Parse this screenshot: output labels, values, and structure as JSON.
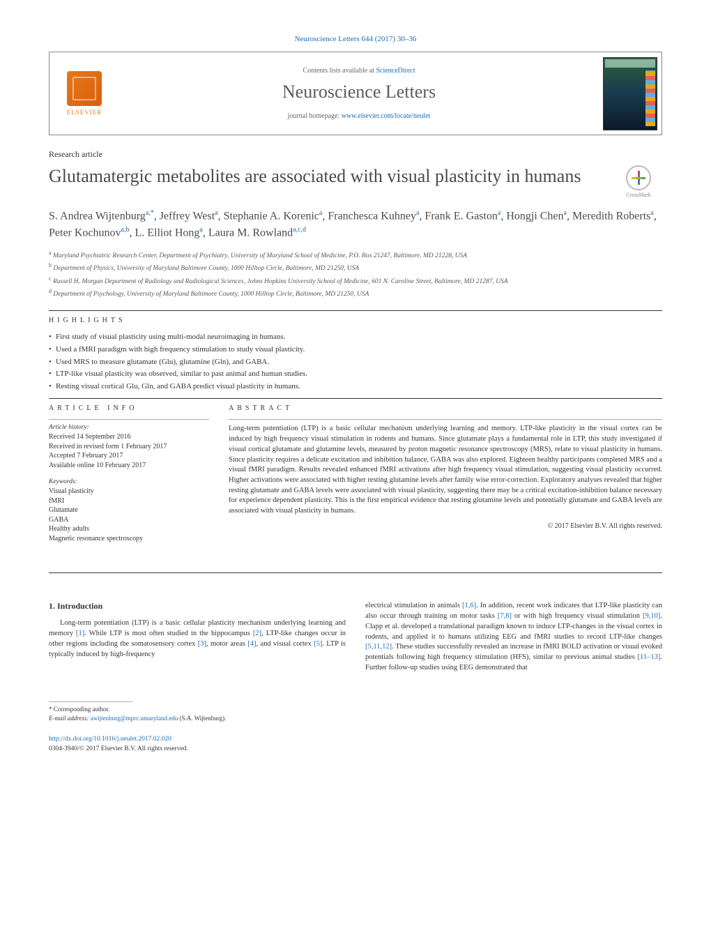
{
  "colors": {
    "link": "#1a6bb8",
    "text": "#333333",
    "elsevier_orange": "#e67817",
    "title_gray": "#4a4a4a"
  },
  "typography": {
    "body_font": "Georgia, serif",
    "title_size_pt": 26,
    "author_size_pt": 16,
    "body_size_pt": 10.5,
    "small_size_pt": 9.5
  },
  "header": {
    "citation": "Neuroscience Letters 644 (2017) 30–36",
    "contents_prefix": "Contents lists available at ",
    "contents_link": "ScienceDirect",
    "journal_title": "Neuroscience Letters",
    "homepage_prefix": "journal homepage: ",
    "homepage_url": "www.elsevier.com/locate/neulet",
    "publisher": "ELSEVIER"
  },
  "crossmark": "CrossMark",
  "article": {
    "type": "Research article",
    "title": "Glutamatergic metabolites are associated with visual plasticity in humans",
    "authors_html": "S. Andrea Wijtenburg<sup>a,*</sup>, Jeffrey West<sup>a</sup>, Stephanie A. Korenic<sup>a</sup>, Franchesca Kuhney<sup>a</sup>, Frank E. Gaston<sup>a</sup>, Hongji Chen<sup>a</sup>, Meredith Roberts<sup>a</sup>, Peter Kochunov<sup>a,b</sup>, L. Elliot Hong<sup>a</sup>, Laura M. Rowland<sup>a,c,d</sup>",
    "affiliations": [
      "<sup>a</sup> Maryland Psychiatric Research Center, Department of Psychiatry, University of Maryland School of Medicine, P.O. Box 21247, Baltimore, MD 21228, USA",
      "<sup>b</sup> Department of Physics, University of Maryland Baltimore County, 1000 Hilltop Circle, Baltimore, MD 21250, USA",
      "<sup>c</sup> Russell H. Morgan Department of Radiology and Radiological Sciences, Johns Hopkins University School of Medicine, 601 N. Caroline Street, Baltimore, MD 21287, USA",
      "<sup>d</sup> Department of Psychology, University of Maryland Baltimore County, 1000 Hilltop Circle, Baltimore, MD 21250, USA"
    ]
  },
  "highlights": {
    "label": "HIGHLIGHTS",
    "items": [
      "First study of visual plasticity using multi-modal neuroimaging in humans.",
      "Used a fMRI paradigm with high frequency stimulation to study visual plasticity.",
      "Used MRS to measure glutamate (Glu), glutamine (Gln), and GABA.",
      "LTP-like visual plasticity was observed, similar to past animal and human studies.",
      "Resting visual cortical Glu, Gln, and GABA predict visual plasticity in humans."
    ]
  },
  "info": {
    "label": "ARTICLE INFO",
    "history_heading": "Article history:",
    "history": [
      "Received 14 September 2016",
      "Received in revised form 1 February 2017",
      "Accepted 7 February 2017",
      "Available online 10 February 2017"
    ],
    "keywords_heading": "Keywords:",
    "keywords": [
      "Visual plasticity",
      "fMRI",
      "Glutamate",
      "GABA",
      "Healthy adults",
      "Magnetic resonance spectroscopy"
    ]
  },
  "abstract": {
    "label": "ABSTRACT",
    "text": "Long-term potentiation (LTP) is a basic cellular mechanism underlying learning and memory. LTP-like plasticity in the visual cortex can be induced by high frequency visual stimulation in rodents and humans. Since glutamate plays a fundamental role in LTP, this study investigated if visual cortical glutamate and glutamine levels, measured by proton magnetic resonance spectroscopy (MRS), relate to visual plasticity in humans. Since plasticity requires a delicate excitation and inhibition balance, GABA was also explored. Eighteen healthy participants completed MRS and a visual fMRI paradigm. Results revealed enhanced fMRI activations after high frequency visual stimulation, suggesting visual plasticity occurred. Higher activations were associated with higher resting glutamine levels after family wise error-correction. Exploratory analyses revealed that higher resting glutamate and GABA levels were associated with visual plasticity, suggesting there may be a critical excitation-inhibition balance necessary for experience dependent plasticity. This is the first empirical evidence that resting glutamine levels and potentially glutamate and GABA levels are associated with visual plasticity in humans.",
    "copyright": "© 2017 Elsevier B.V. All rights reserved."
  },
  "body": {
    "section_number": "1.",
    "section_title": "Introduction",
    "left_text": "Long-term potentiation (LTP) is a basic cellular plasticity mechanism underlying learning and memory <a>[1]</a>. While LTP is most often studied in the hippocampus <a>[2]</a>, LTP-like changes occur in other regions including the somatosensory cortex <a>[3]</a>, motor areas <a>[4]</a>, and visual cortex <a>[5]</a>. LTP is typically induced by high-frequency",
    "right_text": "electrical stimulation in animals <a>[1,6]</a>. In addition, recent work indicates that LTP-like plasticity can also occur through training on motor tasks <a>[7,8]</a> or with high frequency visual stimulation <a>[9,10]</a>. Clapp et al. developed a translational paradigm known to induce LTP-changes in the visual cortex in rodents, and applied it to humans utilizing EEG and fMRI studies to record LTP-like changes <a>[5,11,12]</a>. These studies successfully revealed an increase in fMRI BOLD activation or visual evoked potentials following high frequency stimulation (HFS), similar to previous animal studies <a>[11–13]</a>. Further follow-up studies using EEG demonstrated that"
  },
  "footer": {
    "corr_label": "* Corresponding author.",
    "email_label": "E-mail address: ",
    "email": "awijtenburg@mprc.umaryland.edu",
    "email_suffix": " (S.A. Wijtenburg).",
    "doi": "http://dx.doi.org/10.1016/j.neulet.2017.02.020",
    "issn_line": "0304-3940/© 2017 Elsevier B.V. All rights reserved."
  }
}
